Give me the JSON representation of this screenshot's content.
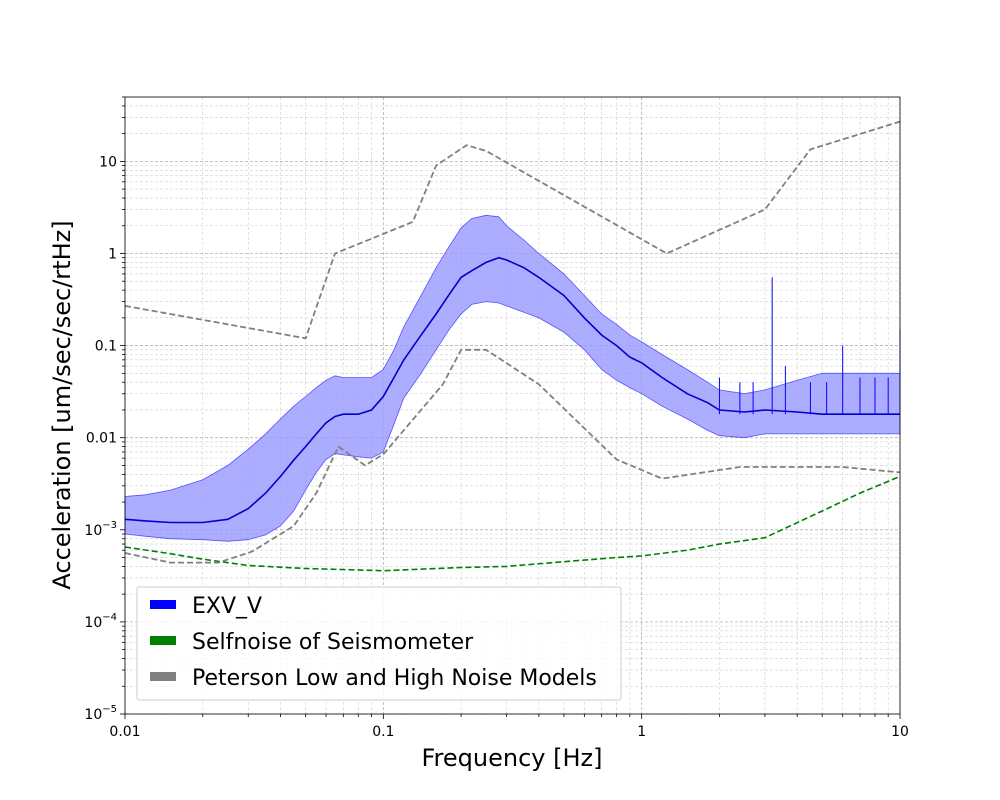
{
  "chart_data": {
    "type": "line",
    "title": "",
    "xlabel": "Frequency [Hz]",
    "ylabel": "Acceleration [um/sec/sec/rtHz]",
    "x_scale": "log",
    "y_scale": "log",
    "xlim": [
      0.01,
      10
    ],
    "ylim": [
      1e-05,
      50
    ],
    "grid": true,
    "legend_position": "lower-left",
    "x_tick_labels": [
      "0.01",
      "0.1",
      "1",
      "10"
    ],
    "y_tick_labels": [
      "10^-5",
      "10^-4",
      "10^-3",
      "0.01",
      "0.1",
      "1",
      "10"
    ],
    "series": [
      {
        "name": "EXV_V",
        "color": "#0000ff",
        "fill_color": "#9999ff",
        "x": [
          0.01,
          0.012,
          0.015,
          0.02,
          0.025,
          0.03,
          0.035,
          0.04,
          0.045,
          0.05,
          0.055,
          0.06,
          0.065,
          0.07,
          0.08,
          0.09,
          0.1,
          0.11,
          0.12,
          0.14,
          0.16,
          0.18,
          0.2,
          0.22,
          0.25,
          0.28,
          0.3,
          0.35,
          0.4,
          0.5,
          0.6,
          0.7,
          0.8,
          0.9,
          1.0,
          1.2,
          1.5,
          1.8,
          2.0,
          2.5,
          3.0,
          4.0,
          5.0,
          6.0,
          8.0,
          10.0
        ],
        "values": [
          0.0013,
          0.00125,
          0.0012,
          0.0012,
          0.0013,
          0.0017,
          0.0025,
          0.0038,
          0.0057,
          0.008,
          0.011,
          0.0145,
          0.017,
          0.018,
          0.018,
          0.02,
          0.028,
          0.045,
          0.07,
          0.13,
          0.22,
          0.36,
          0.55,
          0.65,
          0.8,
          0.9,
          0.85,
          0.7,
          0.55,
          0.35,
          0.2,
          0.13,
          0.1,
          0.075,
          0.065,
          0.045,
          0.03,
          0.024,
          0.02,
          0.019,
          0.02,
          0.019,
          0.018,
          0.018,
          0.018,
          0.018
        ],
        "upper": [
          0.0023,
          0.0024,
          0.0027,
          0.0035,
          0.005,
          0.0075,
          0.011,
          0.016,
          0.022,
          0.028,
          0.035,
          0.042,
          0.047,
          0.045,
          0.045,
          0.045,
          0.055,
          0.09,
          0.16,
          0.35,
          0.7,
          1.2,
          1.9,
          2.4,
          2.6,
          2.5,
          2.0,
          1.4,
          1.0,
          0.6,
          0.35,
          0.22,
          0.17,
          0.13,
          0.11,
          0.08,
          0.055,
          0.04,
          0.033,
          0.03,
          0.033,
          0.042,
          0.05,
          0.05,
          0.05,
          0.05
        ],
        "lower": [
          0.0009,
          0.00085,
          0.0008,
          0.00078,
          0.00075,
          0.00078,
          0.00088,
          0.0011,
          0.0016,
          0.0027,
          0.0042,
          0.0058,
          0.0067,
          0.0065,
          0.0062,
          0.006,
          0.007,
          0.014,
          0.027,
          0.05,
          0.09,
          0.15,
          0.22,
          0.28,
          0.3,
          0.29,
          0.27,
          0.23,
          0.2,
          0.14,
          0.09,
          0.055,
          0.042,
          0.035,
          0.03,
          0.022,
          0.016,
          0.012,
          0.0105,
          0.01,
          0.011,
          0.011,
          0.011,
          0.011,
          0.011,
          0.011
        ]
      },
      {
        "name": "Selfnoise of Seismometer",
        "color": "#008000",
        "x": [
          0.01,
          0.015,
          0.02,
          0.03,
          0.05,
          0.1,
          0.2,
          0.3,
          0.5,
          0.8,
          1.0,
          1.5,
          2.0,
          3.0,
          5.0,
          7.0,
          10.0
        ],
        "values": [
          0.00065,
          0.00055,
          0.00048,
          0.00041,
          0.00038,
          0.00036,
          0.00039,
          0.0004,
          0.00045,
          0.0005,
          0.00052,
          0.0006,
          0.0007,
          0.00082,
          0.0016,
          0.0025,
          0.0038
        ]
      },
      {
        "name": "Peterson Low and High Noise Models",
        "color": "#808080",
        "lines": [
          {
            "x": [
              0.01,
              0.05,
              0.065,
              0.13,
              0.16,
              0.21,
              0.25,
              1.25,
              3.0,
              4.5,
              10.0
            ],
            "values": [
              0.27,
              0.12,
              1.0,
              2.2,
              9.0,
              15.0,
              13.0,
              1.0,
              3.0,
              13.5,
              27.0
            ]
          },
          {
            "x": [
              0.01,
              0.015,
              0.023,
              0.031,
              0.045,
              0.055,
              0.067,
              0.085,
              0.1,
              0.17,
              0.2,
              0.25,
              0.4,
              0.8,
              1.2,
              2.4,
              6.0,
              10.0
            ],
            "values": [
              0.00056,
              0.00044,
              0.00044,
              0.00058,
              0.0011,
              0.0025,
              0.008,
              0.005,
              0.0066,
              0.038,
              0.09,
              0.09,
              0.038,
              0.0058,
              0.0036,
              0.0048,
              0.0048,
              0.0042
            ]
          }
        ]
      }
    ],
    "spikes": {
      "x": [
        2.0,
        2.4,
        2.7,
        3.2,
        3.6,
        4.5,
        5.2,
        6.0,
        7.0,
        8.0,
        9.0,
        10.0
      ],
      "values": [
        0.045,
        0.04,
        0.04,
        0.55,
        0.06,
        0.04,
        0.04,
        0.1,
        0.045,
        0.045,
        0.045,
        0.15
      ]
    }
  }
}
